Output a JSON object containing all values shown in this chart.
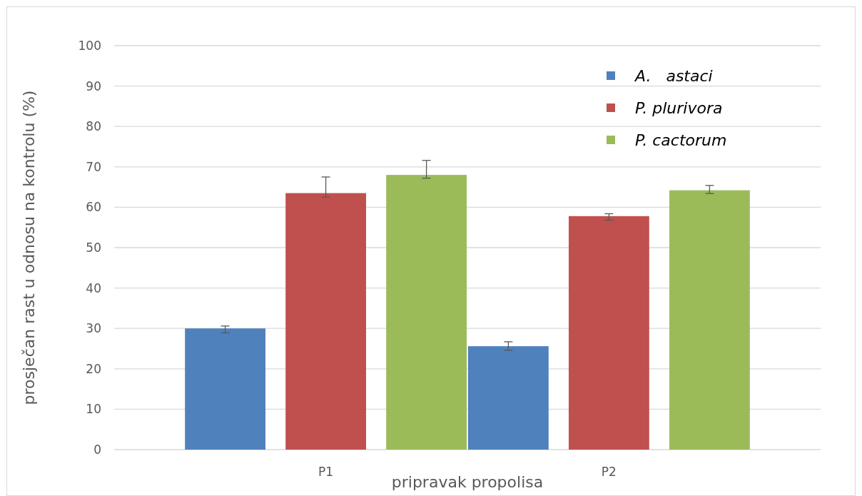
{
  "chart_data": {
    "type": "bar",
    "xlabel": "pripravak propolisa",
    "ylabel": "prosječan rast u odnosu na kontrolu (%)",
    "categories": [
      "P1",
      "P2"
    ],
    "series": [
      {
        "name": "A.   astaci",
        "color": "#4f81bd",
        "values": [
          30.0,
          25.6
        ],
        "errors": [
          [
            28.9,
            30.6
          ],
          [
            24.6,
            26.7
          ]
        ]
      },
      {
        "name": "P. plurivora",
        "color": "#c0504d",
        "values": [
          63.5,
          57.8
        ],
        "errors": [
          [
            62.5,
            67.5
          ],
          [
            56.8,
            58.4
          ]
        ]
      },
      {
        "name": "P. cactorum",
        "color": "#9bbb59",
        "values": [
          68.0,
          64.2
        ],
        "errors": [
          [
            67.2,
            71.6
          ],
          [
            63.4,
            65.4
          ]
        ]
      }
    ],
    "ylim": [
      0,
      100
    ],
    "yticks": [
      0,
      10,
      20,
      30,
      40,
      50,
      60,
      70,
      80,
      90,
      100
    ],
    "grid": "y",
    "legend": "top right"
  }
}
